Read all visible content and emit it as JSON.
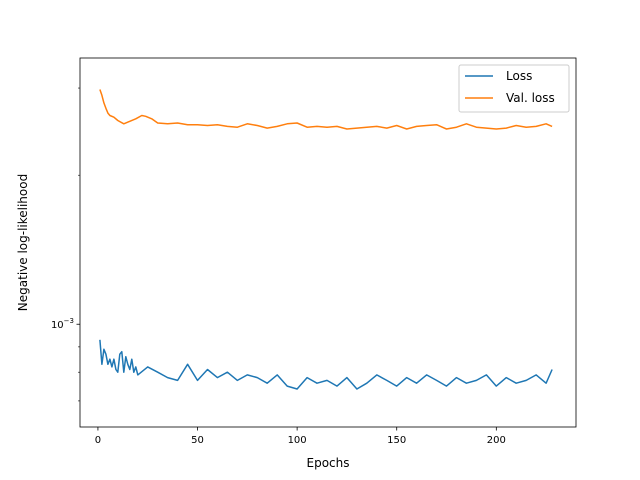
{
  "chart_data": {
    "type": "line",
    "title": "",
    "xlabel": "Epochs",
    "ylabel": "Negative log-likelihood",
    "yscale": "log",
    "xlim": [
      -9,
      240
    ],
    "ylim": [
      0.00062,
      0.00345
    ],
    "x_ticks": [
      0,
      50,
      100,
      150,
      200
    ],
    "y_major_ticks": [
      {
        "value": 0.001,
        "base": "10",
        "exponent": "−3"
      }
    ],
    "legend": {
      "placement": "top-right",
      "entries": [
        "Loss",
        "Val. loss"
      ]
    },
    "grid": false,
    "colors": {
      "Loss": "#1f77b4",
      "Val. loss": "#ff7f0e"
    },
    "series": [
      {
        "name": "Loss",
        "x": [
          1,
          2,
          3,
          4,
          5,
          6,
          7,
          8,
          9,
          10,
          11,
          12,
          13,
          14,
          15,
          16,
          17,
          18,
          19,
          20,
          25,
          30,
          35,
          40,
          45,
          50,
          55,
          60,
          65,
          70,
          75,
          80,
          85,
          90,
          95,
          100,
          105,
          110,
          115,
          120,
          125,
          130,
          135,
          140,
          145,
          150,
          155,
          160,
          165,
          170,
          175,
          180,
          185,
          190,
          195,
          200,
          205,
          210,
          215,
          220,
          225,
          228
        ],
        "values": [
          0.00093,
          0.00083,
          0.00089,
          0.00087,
          0.00083,
          0.00085,
          0.00082,
          0.00085,
          0.00081,
          0.0008,
          0.00087,
          0.00088,
          0.0008,
          0.00086,
          0.00083,
          0.00081,
          0.00085,
          0.0008,
          0.00082,
          0.00079,
          0.00082,
          0.0008,
          0.00078,
          0.00077,
          0.00083,
          0.00077,
          0.00081,
          0.00078,
          0.0008,
          0.00077,
          0.00079,
          0.00078,
          0.00076,
          0.00079,
          0.00075,
          0.00074,
          0.00078,
          0.00076,
          0.00077,
          0.00075,
          0.00078,
          0.00074,
          0.00076,
          0.00079,
          0.00077,
          0.00075,
          0.00078,
          0.00076,
          0.00079,
          0.00077,
          0.00075,
          0.00078,
          0.00076,
          0.00077,
          0.00079,
          0.00075,
          0.00078,
          0.00076,
          0.00077,
          0.00079,
          0.00076,
          0.00081
        ]
      },
      {
        "name": "Val. loss",
        "x": [
          1,
          2,
          3,
          4,
          5,
          6,
          8,
          10,
          13,
          16,
          19,
          22,
          24,
          27,
          30,
          35,
          40,
          45,
          50,
          55,
          60,
          65,
          70,
          75,
          80,
          85,
          90,
          95,
          100,
          105,
          110,
          115,
          120,
          125,
          130,
          135,
          140,
          145,
          150,
          155,
          160,
          165,
          170,
          175,
          180,
          185,
          190,
          195,
          200,
          205,
          210,
          215,
          220,
          225,
          228
        ],
        "values": [
          0.00298,
          0.0029,
          0.0028,
          0.00273,
          0.00267,
          0.00264,
          0.00262,
          0.00258,
          0.00254,
          0.00257,
          0.0026,
          0.00264,
          0.00263,
          0.0026,
          0.00255,
          0.00254,
          0.00255,
          0.00253,
          0.00253,
          0.00252,
          0.00253,
          0.00251,
          0.0025,
          0.00254,
          0.00252,
          0.00249,
          0.00251,
          0.00254,
          0.00255,
          0.0025,
          0.00251,
          0.0025,
          0.00251,
          0.00248,
          0.00249,
          0.0025,
          0.00251,
          0.00249,
          0.00252,
          0.00248,
          0.00251,
          0.00252,
          0.00253,
          0.00248,
          0.0025,
          0.00254,
          0.0025,
          0.00249,
          0.00248,
          0.00249,
          0.00252,
          0.0025,
          0.00251,
          0.00254,
          0.00251
        ]
      }
    ]
  }
}
